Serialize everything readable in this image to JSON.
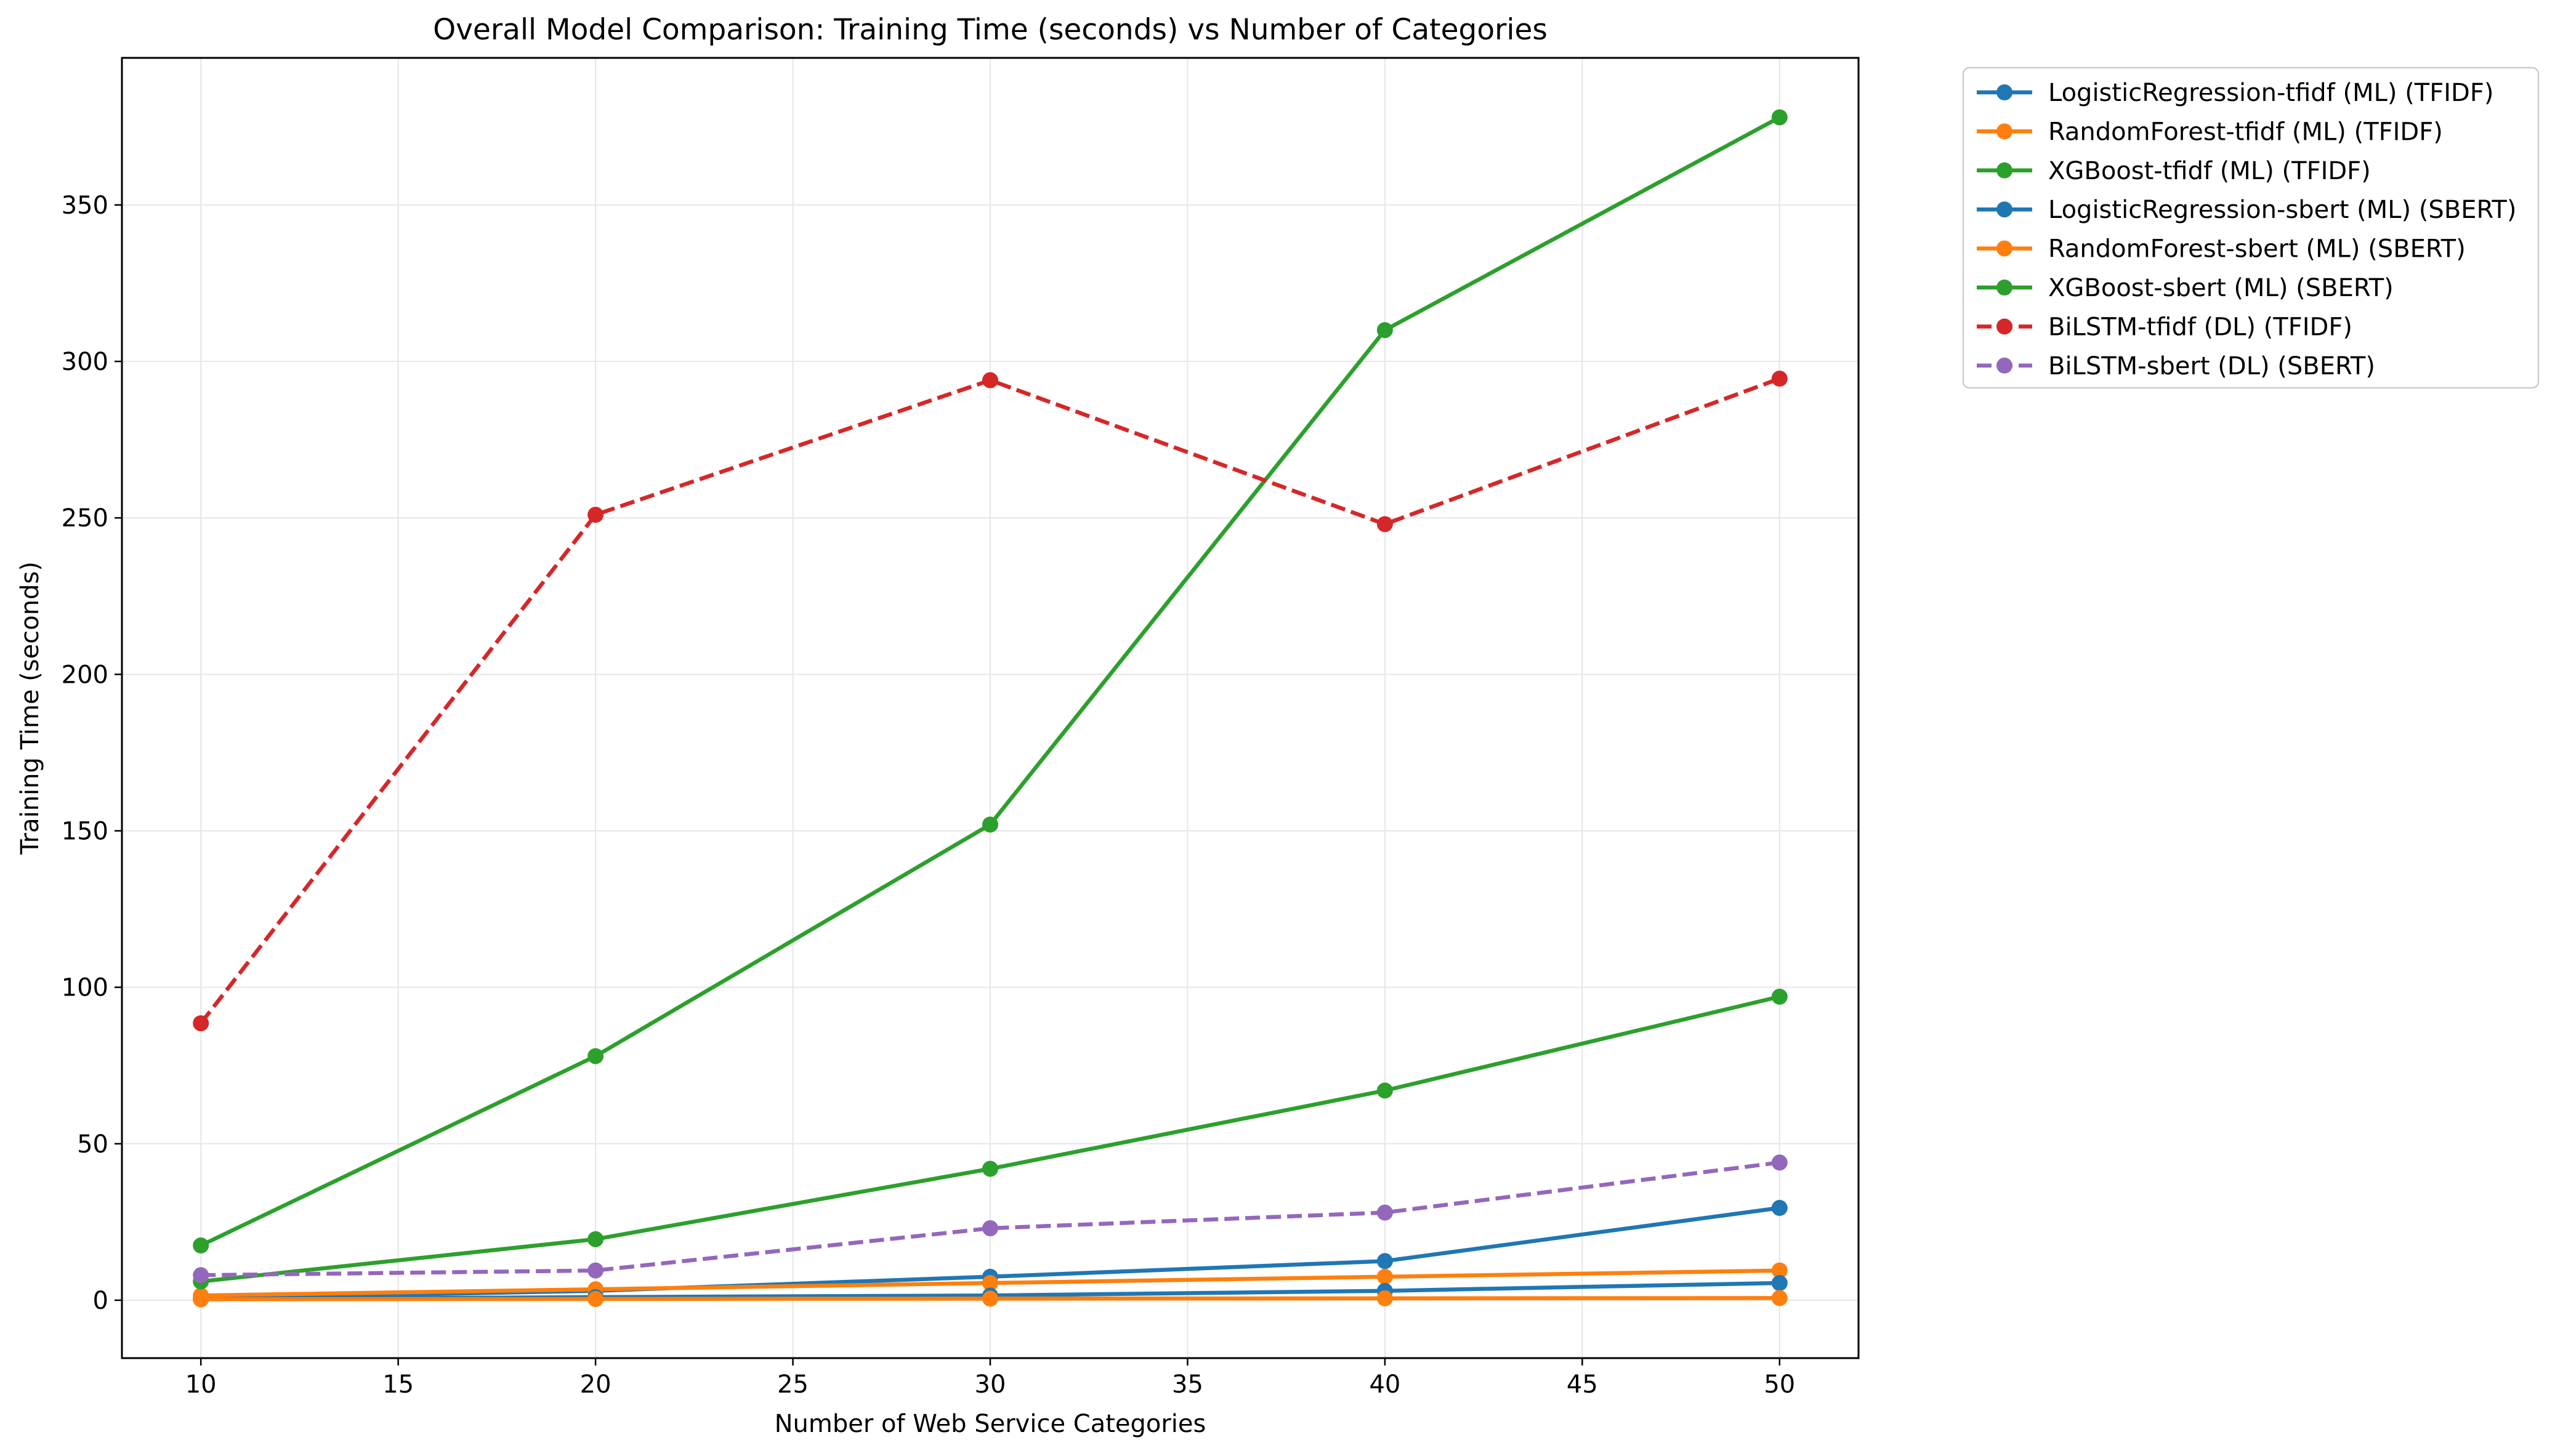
{
  "chart_data": {
    "type": "line",
    "title": "Overall Model Comparison: Training Time (seconds) vs Number of Categories",
    "xlabel": "Number of Web Service Categories",
    "ylabel": "Training Time (seconds)",
    "xlim": [
      8,
      52
    ],
    "ylim": [
      -18.5,
      397
    ],
    "xticks": [
      10,
      15,
      20,
      25,
      30,
      35,
      40,
      45,
      50
    ],
    "yticks": [
      0,
      50,
      100,
      150,
      200,
      250,
      300,
      350
    ],
    "grid": true,
    "legend_position": "outside-top-right",
    "x": [
      10,
      20,
      30,
      40,
      50
    ],
    "series": [
      {
        "name": "LogisticRegression-tfidf (ML) (TFIDF)",
        "color": "#1f77b4",
        "dashed": false,
        "values": [
          0.5,
          3.0,
          7.5,
          12.5,
          29.5
        ]
      },
      {
        "name": "RandomForest-tfidf (ML) (TFIDF)",
        "color": "#ff7f0e",
        "dashed": false,
        "values": [
          1.5,
          3.5,
          5.5,
          7.5,
          9.5
        ]
      },
      {
        "name": "XGBoost-tfidf (ML) (TFIDF)",
        "color": "#2ca02c",
        "dashed": false,
        "values": [
          17.5,
          78,
          152,
          310,
          378
        ]
      },
      {
        "name": "LogisticRegression-sbert (ML) (SBERT)",
        "color": "#1f77b4",
        "dashed": false,
        "values": [
          0.3,
          1.0,
          1.5,
          3.0,
          5.5
        ]
      },
      {
        "name": "RandomForest-sbert (ML) (SBERT)",
        "color": "#ff7f0e",
        "dashed": false,
        "values": [
          0.3,
          0.4,
          0.5,
          0.6,
          0.7
        ]
      },
      {
        "name": "XGBoost-sbert (ML) (SBERT)",
        "color": "#2ca02c",
        "dashed": false,
        "values": [
          6.0,
          19.5,
          42,
          67,
          97
        ]
      },
      {
        "name": "BiLSTM-tfidf (DL) (TFIDF)",
        "color": "#d62728",
        "dashed": true,
        "values": [
          88.5,
          251,
          294,
          248,
          294.5
        ]
      },
      {
        "name": "BiLSTM-sbert (DL) (SBERT)",
        "color": "#9467bd",
        "dashed": true,
        "values": [
          8.0,
          9.5,
          23,
          28,
          44
        ]
      }
    ]
  }
}
